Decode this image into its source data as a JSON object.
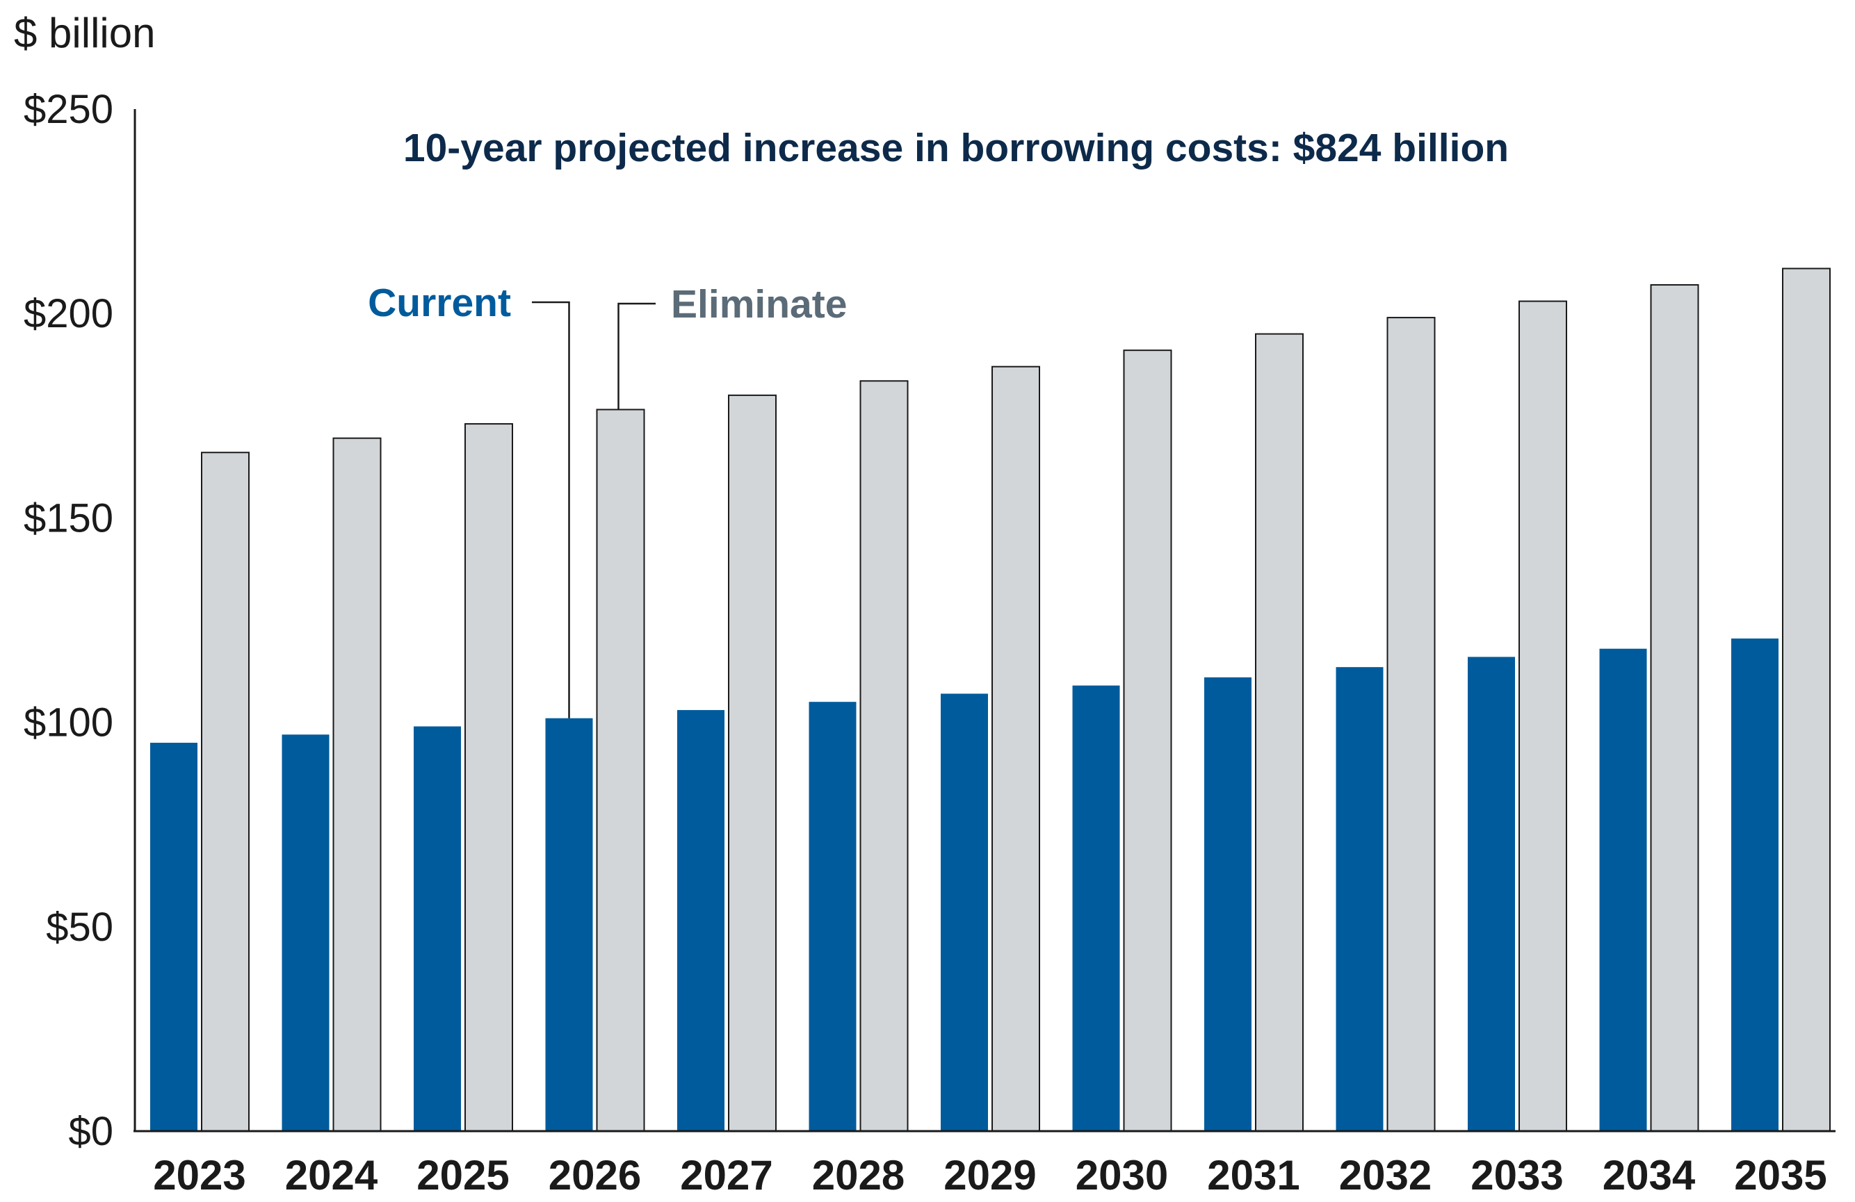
{
  "chart_data": {
    "type": "bar",
    "title": "10-year projected increase in borrowing costs: $824 billion",
    "ylabel": "$ billion",
    "xlabel": "",
    "ylim": [
      0,
      250
    ],
    "yticks": [
      0,
      50,
      100,
      150,
      200,
      250
    ],
    "ytick_labels": [
      "$0",
      "$50",
      "$100",
      "$150",
      "$200",
      "$250"
    ],
    "grid": false,
    "categories": [
      "2023",
      "2024",
      "2025",
      "2026",
      "2027",
      "2028",
      "2029",
      "2030",
      "2031",
      "2032",
      "2033",
      "2034",
      "2035"
    ],
    "series": [
      {
        "name": "Current",
        "color": "#005b9c",
        "values": [
          95,
          97,
          99,
          101,
          103,
          105,
          107,
          109,
          111,
          113.5,
          116,
          118,
          120.5
        ]
      },
      {
        "name": "Eliminate",
        "color": "#d2d6d9",
        "values": [
          166,
          169.5,
          173,
          176.5,
          180,
          183.5,
          187,
          191,
          195,
          199,
          203,
          207,
          211
        ]
      }
    ],
    "annotations": {
      "current_label": "Current",
      "eliminate_label": "Eliminate",
      "current_color": "#005b9c",
      "eliminate_color": "#5b6b78",
      "title_color": "#0d2a4a"
    }
  }
}
